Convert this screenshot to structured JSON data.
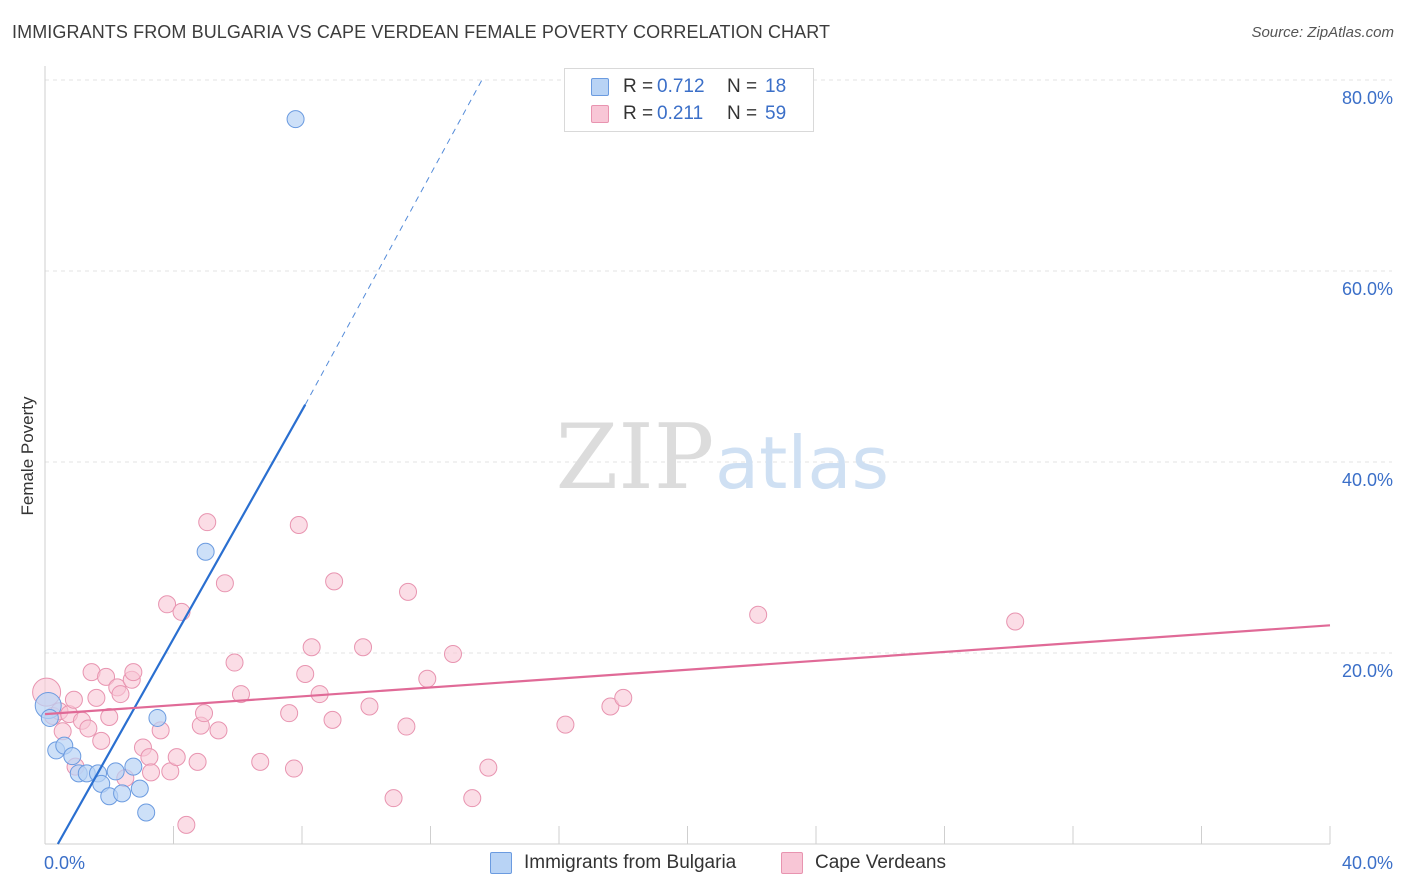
{
  "title": "IMMIGRANTS FROM BULGARIA VS CAPE VERDEAN FEMALE POVERTY CORRELATION CHART",
  "source": "Source: ZipAtlas.com",
  "watermark": {
    "zip": "ZIP",
    "atlas": "atlas"
  },
  "legend": {
    "rows": [
      {
        "r_label": "R =",
        "r_value": "0.712",
        "n_label": "N =",
        "n_value": "18"
      },
      {
        "r_label": "R =",
        "r_value": "0.211",
        "n_label": "N =",
        "n_value": "59"
      }
    ]
  },
  "colors": {
    "blue_fill": "#b8d3f5",
    "blue_stroke": "#6b9be0",
    "blue_line": "#2a6fd0",
    "pink_fill": "#f8c6d6",
    "pink_stroke": "#e894b0",
    "pink_line": "#e06a97",
    "axis_text": "#3b6fc8"
  },
  "chart_data": {
    "type": "scatter",
    "title": "IMMIGRANTS FROM BULGARIA VS CAPE VERDEAN FEMALE POVERTY CORRELATION CHART",
    "xlabel": "",
    "ylabel": "Female Poverty",
    "xlim": [
      0,
      40
    ],
    "ylim": [
      0,
      80
    ],
    "x_tick_labels": [
      "0.0%",
      "40.0%"
    ],
    "y_ticks": [
      20,
      40,
      60,
      80
    ],
    "y_tick_labels": [
      "20.0%",
      "40.0%",
      "60.0%",
      "80.0%"
    ],
    "grid": true,
    "series": [
      {
        "name": "Immigrants from Bulgaria",
        "color": "#6b9be0",
        "points": [
          [
            0.1,
            14.5
          ],
          [
            0.15,
            13.2
          ],
          [
            0.35,
            9.8
          ],
          [
            0.6,
            10.3
          ],
          [
            0.85,
            9.2
          ],
          [
            1.05,
            7.4
          ],
          [
            1.3,
            7.4
          ],
          [
            1.65,
            7.4
          ],
          [
            1.75,
            6.3
          ],
          [
            2.0,
            5.0
          ],
          [
            2.2,
            7.6
          ],
          [
            2.4,
            5.3
          ],
          [
            2.75,
            8.1
          ],
          [
            2.95,
            5.8
          ],
          [
            3.15,
            3.3
          ],
          [
            3.5,
            13.2
          ],
          [
            5.0,
            30.6
          ],
          [
            7.8,
            75.9
          ]
        ],
        "trend": {
          "x": [
            0.4,
            8.1
          ],
          "y": [
            0.0,
            46.0
          ],
          "dash_to": [
            13.6,
            80.0
          ]
        }
      },
      {
        "name": "Cape Verdeans",
        "color": "#e894b0",
        "points": [
          [
            0.05,
            15.9
          ],
          [
            0.25,
            13.4
          ],
          [
            0.45,
            13.9
          ],
          [
            0.55,
            11.8
          ],
          [
            0.75,
            13.6
          ],
          [
            0.9,
            15.1
          ],
          [
            0.95,
            8.1
          ],
          [
            1.15,
            12.9
          ],
          [
            1.35,
            12.1
          ],
          [
            1.45,
            18.0
          ],
          [
            1.6,
            15.3
          ],
          [
            1.75,
            10.8
          ],
          [
            1.9,
            17.5
          ],
          [
            2.0,
            13.3
          ],
          [
            2.25,
            16.4
          ],
          [
            2.35,
            15.7
          ],
          [
            2.5,
            6.9
          ],
          [
            2.7,
            17.2
          ],
          [
            2.75,
            18.0
          ],
          [
            3.05,
            10.1
          ],
          [
            3.25,
            9.1
          ],
          [
            3.3,
            7.5
          ],
          [
            3.6,
            11.9
          ],
          [
            3.8,
            25.1
          ],
          [
            3.9,
            7.6
          ],
          [
            4.1,
            9.1
          ],
          [
            4.25,
            24.3
          ],
          [
            4.4,
            2.0
          ],
          [
            4.75,
            8.6
          ],
          [
            4.85,
            12.4
          ],
          [
            4.95,
            13.7
          ],
          [
            5.05,
            33.7
          ],
          [
            5.4,
            11.9
          ],
          [
            5.6,
            27.3
          ],
          [
            5.9,
            19.0
          ],
          [
            6.1,
            15.7
          ],
          [
            6.7,
            8.6
          ],
          [
            7.6,
            13.7
          ],
          [
            7.75,
            7.9
          ],
          [
            7.9,
            33.4
          ],
          [
            8.1,
            17.8
          ],
          [
            8.3,
            20.6
          ],
          [
            8.55,
            15.7
          ],
          [
            8.95,
            13.0
          ],
          [
            9.0,
            27.5
          ],
          [
            9.9,
            20.6
          ],
          [
            10.1,
            14.4
          ],
          [
            10.85,
            4.8
          ],
          [
            11.25,
            12.3
          ],
          [
            11.3,
            26.4
          ],
          [
            11.9,
            17.3
          ],
          [
            12.7,
            19.9
          ],
          [
            13.3,
            4.8
          ],
          [
            13.8,
            8.0
          ],
          [
            16.2,
            12.5
          ],
          [
            17.6,
            14.4
          ],
          [
            18.0,
            15.3
          ],
          [
            22.2,
            24.0
          ],
          [
            30.2,
            23.3
          ]
        ],
        "trend": {
          "x": [
            0.0,
            40.0
          ],
          "y": [
            13.6,
            22.9
          ]
        }
      }
    ]
  }
}
